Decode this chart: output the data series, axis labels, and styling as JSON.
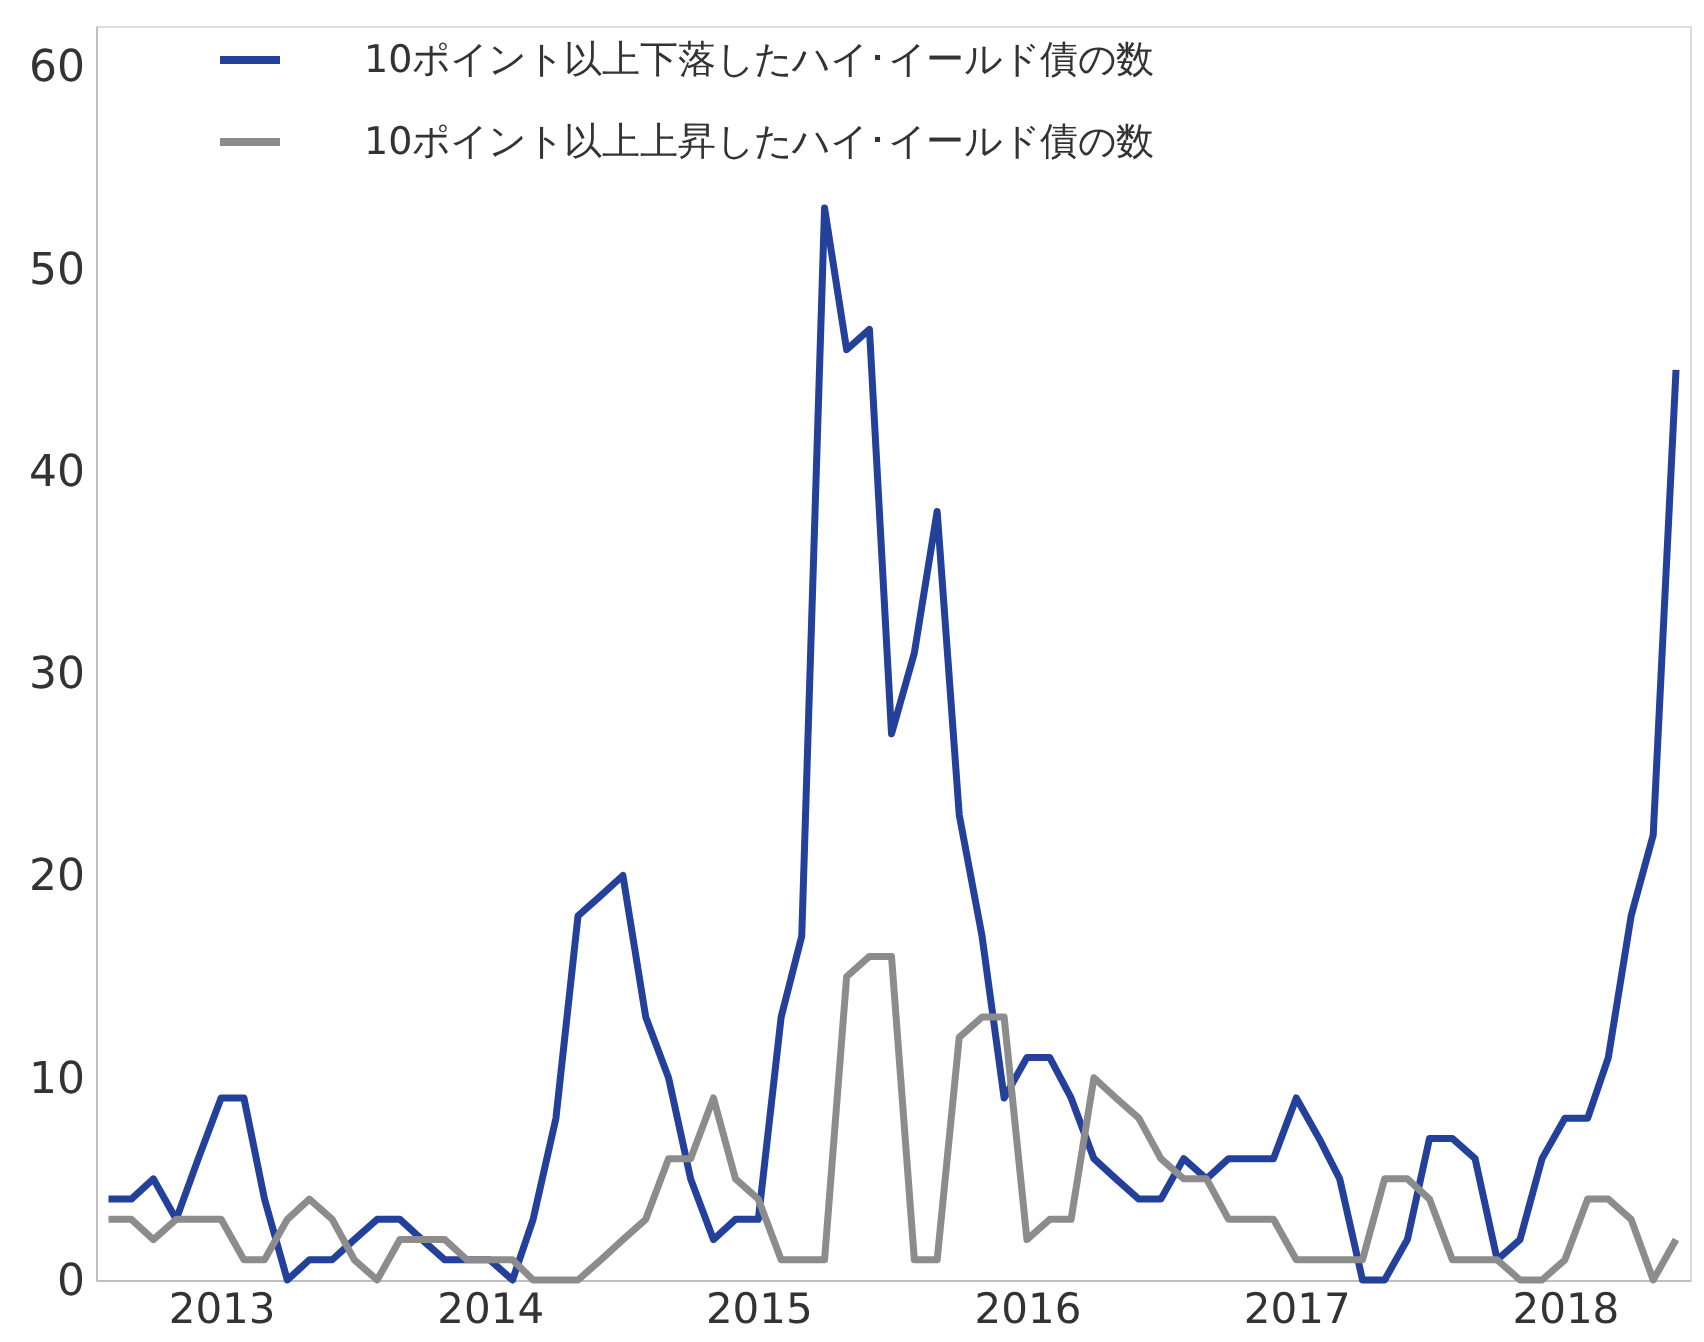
{
  "chart_data": {
    "type": "line",
    "x": [
      "2012-08",
      "2012-09",
      "2012-10",
      "2012-11",
      "2012-12",
      "2013-01",
      "2013-02",
      "2013-03",
      "2013-04",
      "2013-05",
      "2013-06",
      "2013-07",
      "2013-08",
      "2013-09",
      "2013-10",
      "2013-11",
      "2013-12",
      "2014-01",
      "2014-02",
      "2014-03",
      "2014-04",
      "2014-05",
      "2014-06",
      "2014-07",
      "2014-08",
      "2014-09",
      "2014-10",
      "2014-11",
      "2014-12",
      "2015-01",
      "2015-02",
      "2015-03",
      "2015-04",
      "2015-05",
      "2015-06",
      "2015-07",
      "2015-08",
      "2015-09",
      "2015-10",
      "2015-11",
      "2015-12",
      "2016-01",
      "2016-02",
      "2016-03",
      "2016-04",
      "2016-05",
      "2016-06",
      "2016-07",
      "2016-08",
      "2016-09",
      "2016-10",
      "2016-11",
      "2016-12",
      "2017-01",
      "2017-02",
      "2017-03",
      "2017-04",
      "2017-05",
      "2017-06",
      "2017-07",
      "2017-08",
      "2017-09",
      "2017-10",
      "2017-11",
      "2017-12",
      "2018-01",
      "2018-02",
      "2018-03",
      "2018-04",
      "2018-05",
      "2018-06"
    ],
    "series": [
      {
        "name": "10ポイント以上下落したハイ･イールド債の数",
        "color": "#23409a",
        "values": [
          4,
          4,
          5,
          3,
          6,
          9,
          9,
          4,
          0,
          1,
          1,
          2,
          3,
          3,
          2,
          1,
          1,
          1,
          0,
          3,
          8,
          18,
          19,
          20,
          13,
          10,
          5,
          2,
          3,
          3,
          13,
          17,
          53,
          46,
          47,
          27,
          31,
          38,
          23,
          17,
          9,
          11,
          11,
          9,
          6,
          5,
          4,
          4,
          6,
          5,
          6,
          6,
          6,
          9,
          7,
          5,
          0,
          0,
          2,
          7,
          7,
          6,
          1,
          2,
          6,
          8,
          8,
          11,
          18,
          22,
          45
        ]
      },
      {
        "name": "10ポイント以上上昇したハイ･イールド債の数",
        "color": "#8c8c8c",
        "values": [
          3,
          3,
          2,
          3,
          3,
          3,
          1,
          1,
          3,
          4,
          3,
          1,
          0,
          2,
          2,
          2,
          1,
          1,
          1,
          0,
          0,
          0,
          1,
          2,
          3,
          6,
          6,
          9,
          5,
          4,
          1,
          1,
          1,
          15,
          16,
          16,
          1,
          1,
          12,
          13,
          13,
          2,
          3,
          3,
          10,
          9,
          8,
          6,
          5,
          5,
          3,
          3,
          3,
          1,
          1,
          1,
          1,
          5,
          5,
          4,
          1,
          1,
          1,
          0,
          0,
          1,
          4,
          4,
          3,
          0,
          2
        ]
      }
    ],
    "xlim": [
      "2012-07-15",
      "2018-06-20"
    ],
    "xticks": [
      "2013",
      "2014",
      "2015",
      "2016",
      "2017",
      "2018"
    ],
    "ylim": [
      0,
      62
    ],
    "yticks": [
      0,
      10,
      20,
      30,
      40,
      50,
      60
    ],
    "grid": false,
    "legend": "top",
    "marker": "none",
    "line_style": "solid"
  }
}
